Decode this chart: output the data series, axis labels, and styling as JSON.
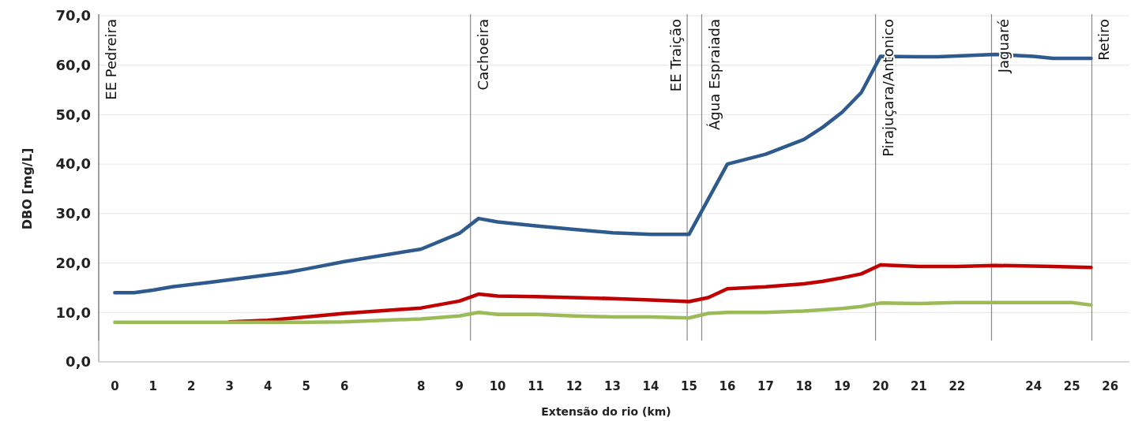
{
  "chart_data": {
    "type": "line",
    "ylabel": "DBO [mg/L]",
    "xlabel": "Extensão do rio (km)",
    "xlim": [
      -0.42,
      26.5
    ],
    "xticks": [
      0,
      1,
      2,
      3,
      4,
      5,
      6,
      8,
      9,
      10,
      11,
      12,
      13,
      14,
      15,
      16,
      17,
      18,
      19,
      20,
      21,
      22,
      24,
      25,
      26
    ],
    "ylim": [
      0,
      70
    ],
    "yticks": [
      {
        "value": 0,
        "label": "0,0"
      },
      {
        "value": 10,
        "label": "10,0"
      },
      {
        "value": 20,
        "label": "20,0"
      },
      {
        "value": 30,
        "label": "30,0"
      },
      {
        "value": 40,
        "label": "40,0"
      },
      {
        "value": 50,
        "label": "50,0"
      },
      {
        "value": 60,
        "label": "60,0"
      },
      {
        "value": 70,
        "label": "70,0"
      }
    ],
    "grid": "y",
    "line_style": "solid",
    "series": [
      {
        "color": "#2e5a8e",
        "x": [
          0,
          0.5,
          1,
          1.5,
          2.5,
          3.5,
          4.5,
          5,
          6,
          8,
          9,
          9.5,
          10,
          11,
          12,
          13,
          14,
          15,
          16,
          17,
          18,
          18.5,
          19,
          19.5,
          20,
          21,
          21.5,
          23,
          24,
          24.5,
          25.5
        ],
        "values": [
          14,
          14,
          14.5,
          15.2,
          16.1,
          17.1,
          18.1,
          18.8,
          20.3,
          22.8,
          26,
          29,
          28.3,
          27.5,
          26.8,
          26.1,
          25.8,
          25.8,
          40,
          42,
          45,
          47.5,
          50.5,
          54.5,
          61.8,
          61.7,
          61.7,
          62.2,
          61.8,
          61.4,
          61.4
        ]
      },
      {
        "color": "#c00000",
        "x": [
          3,
          4,
          5,
          6,
          8,
          9,
          9.5,
          10,
          11,
          12,
          13,
          14,
          15,
          15.5,
          16,
          17,
          18,
          18.5,
          19,
          19.5,
          20,
          21,
          22,
          23,
          24.5,
          25.5
        ],
        "values": [
          8.1,
          8.4,
          9.1,
          9.8,
          10.9,
          12.3,
          13.7,
          13.3,
          13.2,
          13,
          12.8,
          12.5,
          12.2,
          13,
          14.8,
          15.2,
          15.8,
          16.3,
          17,
          17.8,
          19.6,
          19.3,
          19.3,
          19.5,
          19.3,
          19.1
        ]
      },
      {
        "color": "#9bbb59",
        "x": [
          0,
          1,
          2,
          3,
          4,
          5,
          6,
          8,
          9,
          9.5,
          10,
          11,
          12,
          13,
          14,
          15,
          15.5,
          16,
          17,
          18,
          19,
          19.5,
          20,
          21,
          22,
          23,
          24.5,
          25,
          25.5
        ],
        "values": [
          8,
          8,
          8,
          8,
          8,
          8,
          8.1,
          8.7,
          9.3,
          10,
          9.6,
          9.6,
          9.3,
          9.1,
          9.1,
          8.9,
          9.8,
          10,
          10,
          10.3,
          10.8,
          11.2,
          11.9,
          11.8,
          12,
          12,
          12,
          12,
          11.5
        ]
      }
    ],
    "ref_lines": [
      {
        "axis": "x",
        "value": -0.42,
        "label": "EE Pedreira"
      },
      {
        "axis": "x",
        "value": 9.29,
        "label": "Cachoeira"
      },
      {
        "axis": "x",
        "value": 14.95,
        "label": "EE Traição"
      },
      {
        "axis": "x",
        "value": 15.33,
        "label": "Água Espraiada"
      },
      {
        "axis": "x",
        "value": 19.87,
        "label": "Pirajuçara/Antonico"
      },
      {
        "axis": "x",
        "value": 22.9,
        "label": "Jaguaré"
      },
      {
        "axis": "x",
        "value": 25.52,
        "label": "Retiro"
      }
    ]
  }
}
